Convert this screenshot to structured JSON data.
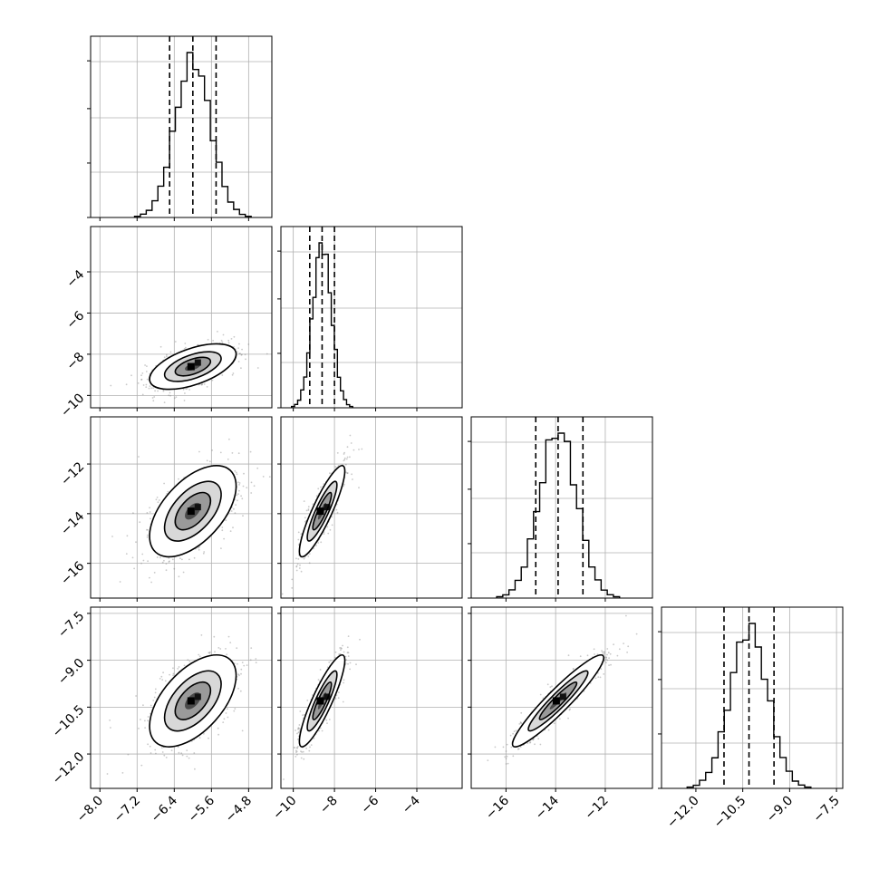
{
  "figure": {
    "type": "corner-plot",
    "background": "#ffffff",
    "grid": true,
    "frame_color": "#000000",
    "grid_color": "#b0b0b0"
  },
  "chart_data": {
    "type": "corner",
    "parameters": [
      {
        "index": 0,
        "median": -6.0,
        "q16": -6.5,
        "q84": -5.5,
        "sigma": 0.38,
        "axis_range": [
          -8.2,
          -4.3
        ],
        "ticks": [
          "-8.0",
          "-7.2",
          "-6.4",
          "-5.6",
          "-4.8"
        ],
        "tick_values": [
          -8.0,
          -7.2,
          -6.4,
          -5.6,
          -4.8
        ]
      },
      {
        "index": 1,
        "median": -8.6,
        "q16": -9.2,
        "q84": -8.0,
        "sigma": 0.45,
        "axis_range": [
          -10.6,
          -1.8
        ],
        "ticks": [
          "-10",
          "-8",
          "-6",
          "-4"
        ],
        "tick_values": [
          -10,
          -8,
          -6,
          -4
        ]
      },
      {
        "index": 2,
        "median": -13.9,
        "q16": -14.8,
        "q84": -12.9,
        "sigma": 0.75,
        "axis_range": [
          -17.4,
          -10.1
        ],
        "ticks": [
          "-16",
          "-14",
          "-12"
        ],
        "tick_values": [
          -16,
          -14,
          -12
        ]
      },
      {
        "index": 3,
        "median": -10.3,
        "q16": -11.1,
        "q84": -9.5,
        "sigma": 0.6,
        "axis_range": [
          -13.1,
          -7.3
        ],
        "ticks": [
          "-12.0",
          "-10.5",
          "-9.0",
          "-7.5"
        ],
        "tick_values": [
          -12.0,
          -10.5,
          -9.0,
          -7.5
        ]
      }
    ],
    "y_ticks": [
      null,
      {
        "ticks": [
          "-4",
          "-6",
          "-8",
          "-10"
        ],
        "tick_values": [
          -4,
          -6,
          -8,
          -10
        ]
      },
      {
        "ticks": [
          "-12",
          "-14",
          "-16"
        ],
        "tick_values": [
          -12,
          -14,
          -16
        ]
      },
      {
        "ticks": [
          "-7.5",
          "-9.0",
          "-10.5",
          "-12.0"
        ],
        "tick_values": [
          -7.5,
          -9.0,
          -10.5,
          -12.0
        ]
      }
    ],
    "correlations": [
      [
        1,
        0.55,
        0.55,
        0.55
      ],
      [
        0.55,
        1,
        0.88,
        0.88
      ],
      [
        0.55,
        0.88,
        1,
        0.94
      ],
      [
        0.55,
        0.88,
        0.94,
        1
      ]
    ],
    "quantile_lines": "dashed",
    "histogram_bins": 20,
    "contour_levels": 3
  }
}
